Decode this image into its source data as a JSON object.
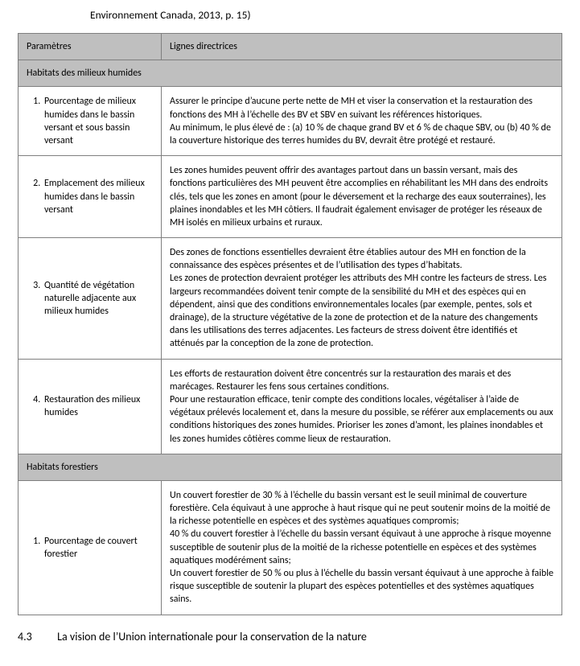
{
  "caption": "Environnement Canada, 2013, p. 15)",
  "column_headers": {
    "param": "Paramètres",
    "directive": "Lignes directrices"
  },
  "sections": [
    {
      "title": "Habitats des milieux humides",
      "rows": [
        {
          "num": "1.",
          "param": "Pourcentage de milieux humides dans le bassin versant et sous bassin versant",
          "directive": "Assurer le principe d’aucune perte nette de MH et viser la conservation et la restauration des fonctions des MH à l’échelle des BV et SBV en suivant les références historiques.\nAu minimum, le plus élevé de : (a) 10 % de chaque grand BV et 6 % de chaque SBV, ou (b) 40 % de la couverture historique des terres humides du BV, devrait être protégé et restauré."
        },
        {
          "num": "2.",
          "param": "Emplacement des milieux humides dans le bassin versant",
          "directive": "Les zones humides peuvent offrir des avantages partout dans un bassin versant, mais des fonctions particulières des MH peuvent être accomplies en réhabilitant les MH dans des endroits clés, tels que les zones en amont (pour le déversement et la recharge des eaux souterraines), les plaines inondables et les MH côtiers. Il faudrait également envisager de protéger les réseaux de MH isolés en milieux urbains et ruraux."
        },
        {
          "num": "3.",
          "param": "Quantité de végétation naturelle adjacente aux milieux humides",
          "directive": "Des zones de fonctions essentielles devraient être établies autour des MH en fonction de la connaissance des espèces présentes et de l’utilisation des types d’habitats.\nLes zones de protection devraient protéger les attributs des MH contre les facteurs de stress. Les largeurs recommandées doivent tenir compte de la sensibilité du MH et des espèces qui en dépendent, ainsi que des conditions environnementales locales (par exemple, pentes, sols et drainage), de la structure végétative de la zone de protection et de la nature des changements dans les utilisations des terres adjacentes. Les facteurs de stress doivent être identifiés et atténués par la conception de la zone de protection."
        },
        {
          "num": "4.",
          "param": "Restauration des milieux humides",
          "directive": "Les efforts de restauration doivent être concentrés sur la restauration des marais et des marécages. Restaurer les fens sous certaines conditions.\nPour une restauration efficace, tenir compte des conditions locales, végétaliser à l’aide de végétaux prélevés localement et, dans la mesure du possible, se référer aux emplacements ou aux conditions historiques des zones humides. Prioriser les zones d’amont, les plaines inondables et les zones humides côtières comme lieux de restauration."
        }
      ]
    },
    {
      "title": "Habitats forestiers",
      "rows": [
        {
          "num": "1.",
          "param": "Pourcentage de couvert forestier",
          "directive": "Un couvert forestier de 30 % à l’échelle du bassin versant est le seuil minimal de couverture forestière. Cela équivaut à une approche à haut risque qui ne peut soutenir moins de la moitié de la richesse potentielle en espèces et des systèmes aquatiques compromis;\n40 % du couvert forestier à l’échelle du bassin versant équivaut à une approche à risque moyenne susceptible de soutenir plus de la moitié de la richesse potentielle en espèces et des systèmes aquatiques modérément sains;\nUn couvert forestier de 50 % ou plus à l’échelle du bassin versant équivaut à une approche à faible risque susceptible de soutenir la plupart des espèces potentielles et des systèmes aquatiques sains."
        }
      ]
    }
  ],
  "footer": {
    "num": "4.3",
    "title": "La vision de l’Union internationale pour la conservation de la nature"
  }
}
